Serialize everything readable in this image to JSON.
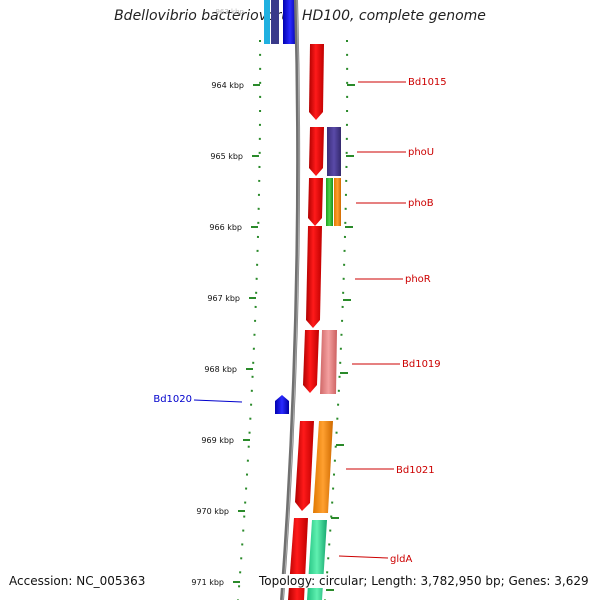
{
  "title": "Bdellovibrio bacteriovorus HD100, complete genome",
  "footer": {
    "accession": "Accession: NC_005363",
    "summary": "Topology: circular; Length: 3,782,950 bp; Genes: 3,629"
  },
  "colors": {
    "backbone": "#808080",
    "tick": "#2a8a2a",
    "forward_gene": "#ff0000",
    "reverse_gene": "#0000ff",
    "label_forward": "#cc0000",
    "label_reverse": "#0000cc"
  },
  "ruler": {
    "ticks": [
      {
        "label": "964 kbp"
      },
      {
        "label": "965 kbp"
      },
      {
        "label": "966 kbp"
      },
      {
        "label": "967 kbp"
      },
      {
        "label": "968 kbp"
      },
      {
        "label": "969 kbp"
      },
      {
        "label": "970 kbp"
      },
      {
        "label": "971 kbp"
      }
    ]
  },
  "gene_labels": [
    {
      "name": "Bd1015",
      "strand": "forward"
    },
    {
      "name": "phoU",
      "strand": "forward"
    },
    {
      "name": "phoB",
      "strand": "forward"
    },
    {
      "name": "phoR",
      "strand": "forward"
    },
    {
      "name": "Bd1019",
      "strand": "forward"
    },
    {
      "name": "Bd1020",
      "strand": "reverse"
    },
    {
      "name": "Bd1021",
      "strand": "forward"
    },
    {
      "name": "gldA",
      "strand": "forward"
    }
  ]
}
